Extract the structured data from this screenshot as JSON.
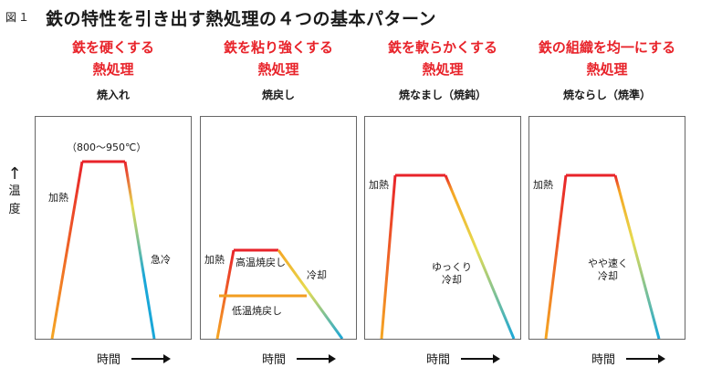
{
  "figure_label": "図１",
  "title": "鉄の特性を引き出す熱処理の４つの基本パターン",
  "y_axis": {
    "label_chars": [
      "温",
      "度"
    ]
  },
  "x_axis_label": "時間",
  "colors": {
    "heading": "#e8232a",
    "hot": "#e8232a",
    "warm": "#f5a623",
    "mid": "#e6dc50",
    "cool": "#1aa7d8"
  },
  "panels": [
    {
      "heading": [
        "鉄を硬くする",
        "熱処理"
      ],
      "subtitle": "焼入れ",
      "temp_label": "（800～950℃）",
      "heat_label": "加熱",
      "cool_label": "急冷"
    },
    {
      "heading": [
        "鉄を粘り強くする",
        "熱処理"
      ],
      "subtitle": "焼戻し",
      "heat_label": "加熱",
      "high_temp_label": "高温焼戻し",
      "low_temp_label": "低温焼戻し",
      "cool_label": "冷却"
    },
    {
      "heading": [
        "鉄を軟らかくする",
        "熱処理"
      ],
      "subtitle": "焼なまし（焼鈍）",
      "heat_label": "加熱",
      "cool_label": [
        "ゆっくり",
        "冷却"
      ]
    },
    {
      "heading": [
        "鉄の組織を均一にする",
        "熱処理"
      ],
      "subtitle": "焼ならし（焼準）",
      "heat_label": "加熱",
      "cool_label": [
        "やや速く",
        "冷却"
      ]
    }
  ]
}
